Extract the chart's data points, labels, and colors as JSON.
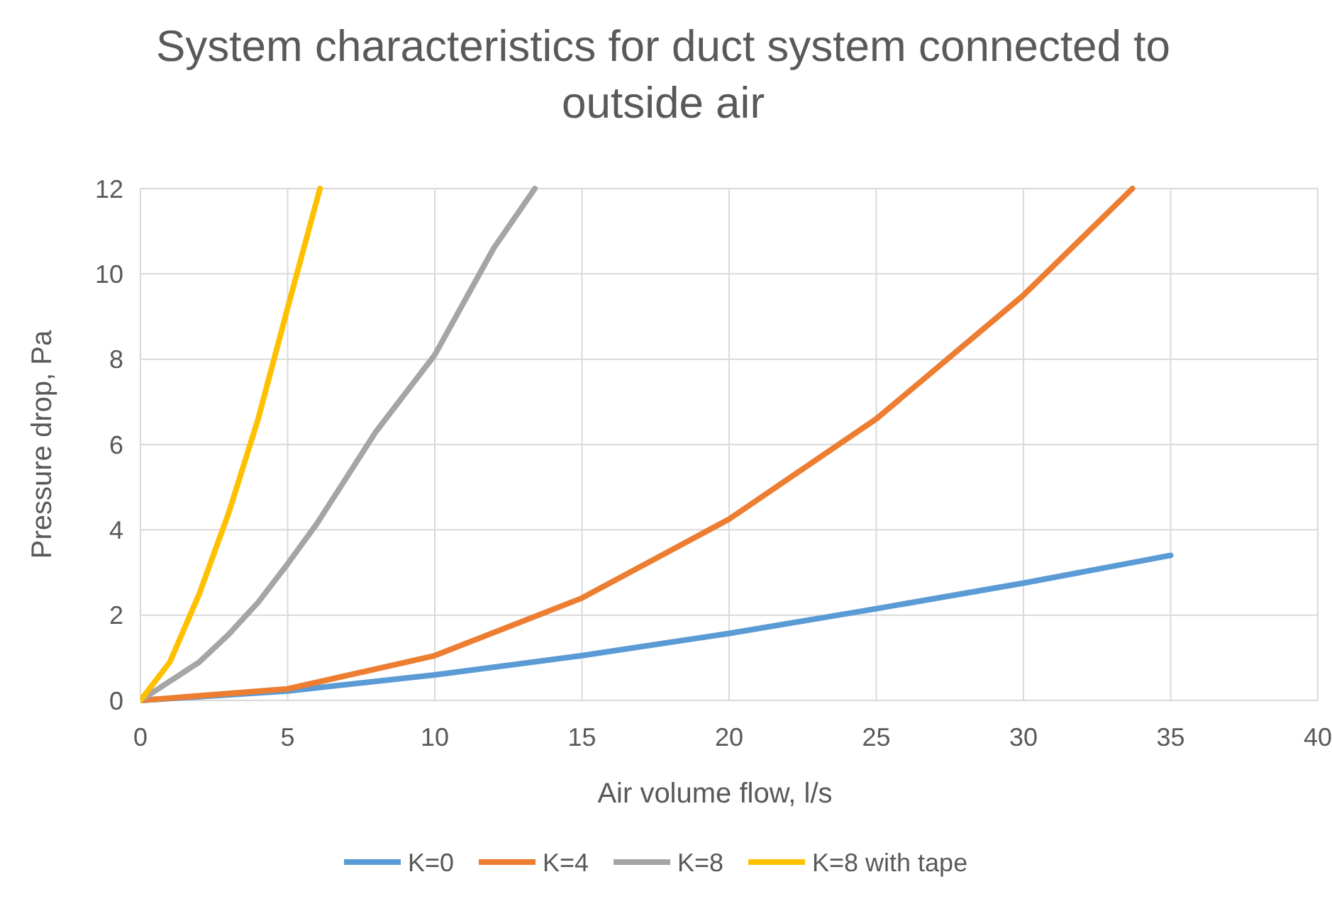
{
  "chart_data": {
    "type": "line",
    "title": "System characteristics for duct system connected to outside air",
    "xlabel": "Air volume flow, l/s",
    "ylabel": "Pressure drop, Pa",
    "xlim": [
      0,
      40
    ],
    "ylim": [
      0,
      12
    ],
    "xticks": [
      0,
      5,
      10,
      15,
      20,
      25,
      30,
      35,
      40
    ],
    "yticks": [
      0,
      2,
      4,
      6,
      8,
      10,
      12
    ],
    "grid": true,
    "legend": "bottom",
    "marker": "none",
    "line_style": "solid",
    "series": [
      {
        "name": "K=0",
        "color": "#5b9bd5",
        "x": [
          0,
          5,
          10,
          15,
          20,
          25,
          30,
          35
        ],
        "values": [
          0,
          0.22,
          0.6,
          1.05,
          1.57,
          2.15,
          2.75,
          3.4
        ]
      },
      {
        "name": "K=4",
        "color": "#ed7d31",
        "x": [
          0,
          5,
          10,
          15,
          20,
          25,
          30,
          33.7
        ],
        "values": [
          0,
          0.27,
          1.05,
          2.4,
          4.25,
          6.6,
          9.5,
          12
        ]
      },
      {
        "name": "K=8",
        "color": "#a5a5a5",
        "x": [
          0,
          2,
          3,
          4,
          5,
          6,
          8,
          10,
          12,
          13.4
        ],
        "values": [
          0,
          0.9,
          1.55,
          2.3,
          3.2,
          4.15,
          6.3,
          8.1,
          10.6,
          12
        ]
      },
      {
        "name": "K=8 with tape",
        "color": "#ffc000",
        "x": [
          0,
          1,
          2,
          3,
          4,
          5,
          6.1
        ],
        "values": [
          0,
          0.9,
          2.5,
          4.4,
          6.6,
          9.2,
          12
        ]
      }
    ]
  }
}
